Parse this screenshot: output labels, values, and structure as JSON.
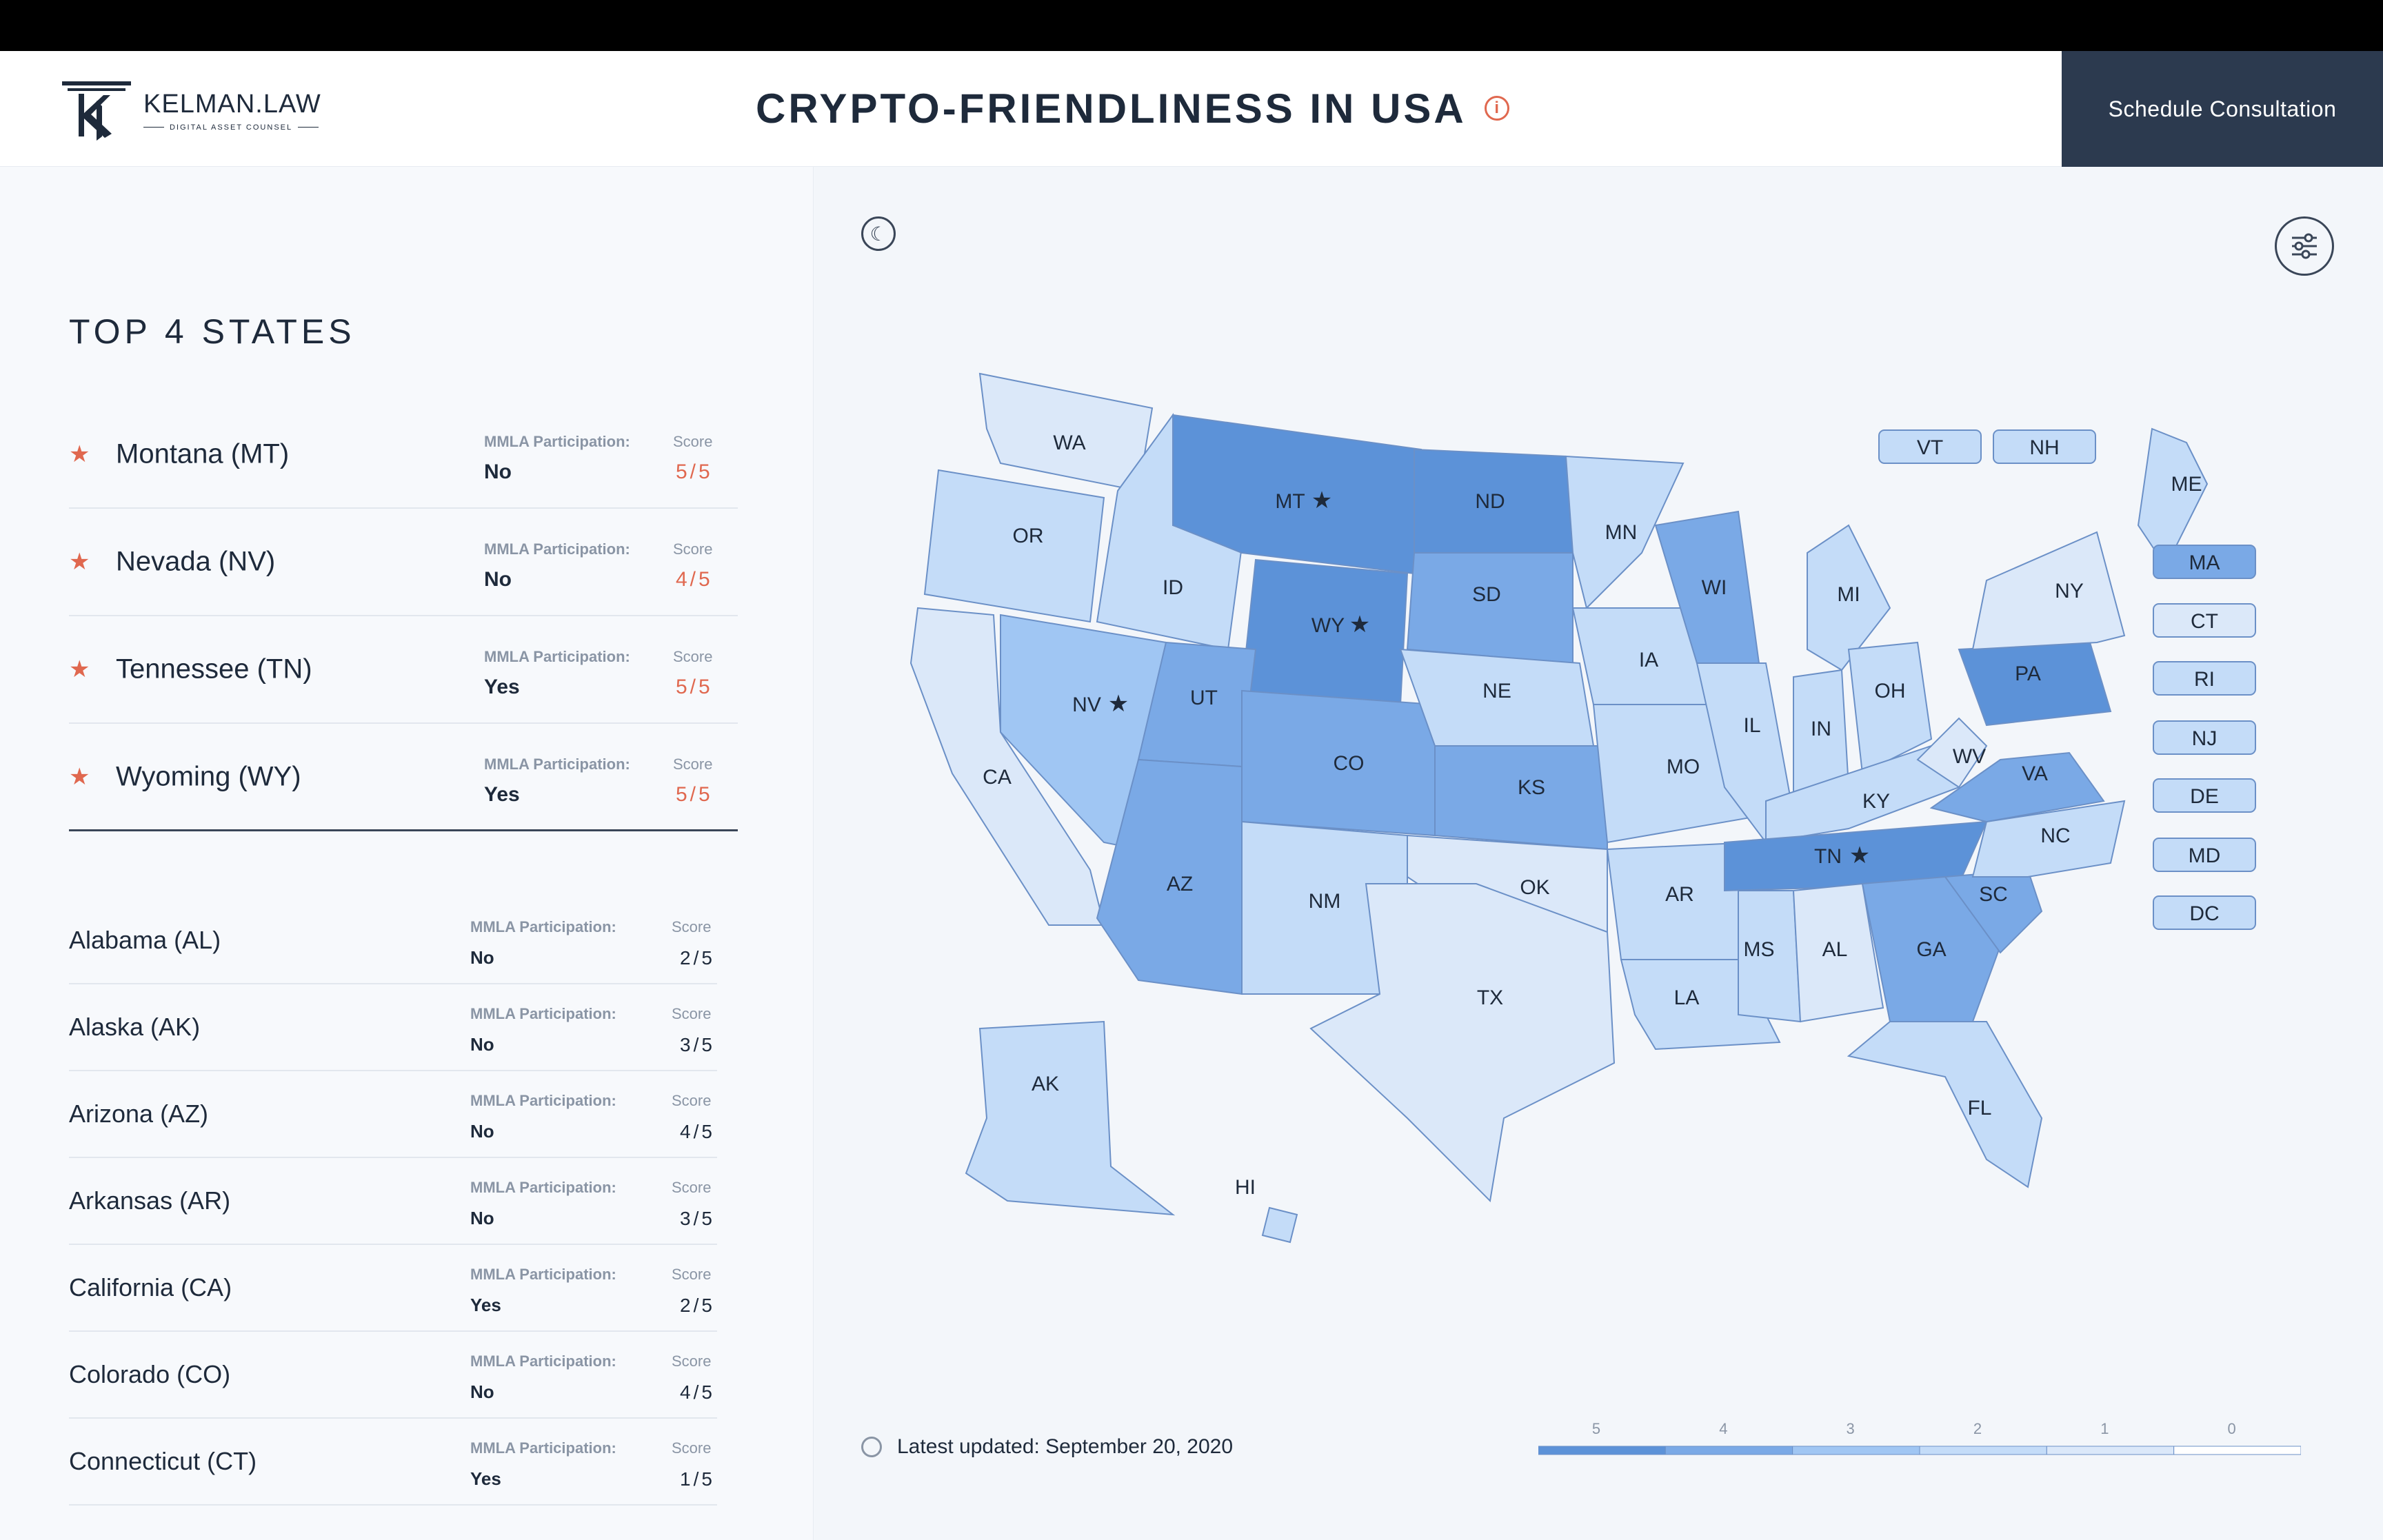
{
  "header": {
    "logo_name": "KELMAN.LAW",
    "logo_sub": "DIGITAL ASSET COUNSEL",
    "title": "CRYPTO-FRIENDLINESS IN USA",
    "info_glyph": "i",
    "cta_label": "Schedule Consultation"
  },
  "sidebar": {
    "top_title": "TOP 4 STATES",
    "mmla_label": "MMLA Participation:",
    "score_label": "Score",
    "top_states": [
      {
        "name": "Montana (MT)",
        "mmla": "No",
        "score": "5/5"
      },
      {
        "name": "Nevada (NV)",
        "mmla": "No",
        "score": "4/5"
      },
      {
        "name": "Tennessee (TN)",
        "mmla": "Yes",
        "score": "5/5"
      },
      {
        "name": "Wyoming (WY)",
        "mmla": "Yes",
        "score": "5/5"
      }
    ],
    "states": [
      {
        "name": "Alabama (AL)",
        "mmla": "No",
        "score": "2/5"
      },
      {
        "name": "Alaska (AK)",
        "mmla": "No",
        "score": "3/5"
      },
      {
        "name": "Arizona (AZ)",
        "mmla": "No",
        "score": "4/5"
      },
      {
        "name": "Arkansas (AR)",
        "mmla": "No",
        "score": "3/5"
      },
      {
        "name": "California (CA)",
        "mmla": "Yes",
        "score": "2/5"
      },
      {
        "name": "Colorado (CO)",
        "mmla": "No",
        "score": "4/5"
      },
      {
        "name": "Connecticut (CT)",
        "mmla": "Yes",
        "score": "1/5"
      }
    ]
  },
  "map": {
    "state_labels": [
      "WA",
      "OR",
      "CA",
      "ID",
      "NV",
      "MT",
      "WY",
      "UT",
      "AZ",
      "CO",
      "NM",
      "ND",
      "SD",
      "NE",
      "KS",
      "OK",
      "TX",
      "MN",
      "IA",
      "MO",
      "AR",
      "LA",
      "WI",
      "IL",
      "MI",
      "IN",
      "OH",
      "KY",
      "TN",
      "MS",
      "AL",
      "GA",
      "FL",
      "SC",
      "NC",
      "VA",
      "WV",
      "PA",
      "NY",
      "ME",
      "AK",
      "HI"
    ],
    "starred": [
      "MT",
      "WY",
      "NV",
      "TN"
    ],
    "small_states": [
      "VT",
      "NH",
      "MA",
      "CT",
      "RI",
      "NJ",
      "DE",
      "MD",
      "DC"
    ],
    "updated_text": "Latest updated: September 20, 2020",
    "legend_values": [
      "5",
      "4",
      "3",
      "2",
      "1",
      "0"
    ],
    "colors": {
      "s5": "#5c92d8",
      "s4": "#7aa9e6",
      "s3": "#a0c6f3",
      "s2": "#c4dcf8",
      "s1": "#dbe8f9",
      "s0": "#ffffff",
      "accent": "#e0684f",
      "dark": "#2c3a4f"
    }
  }
}
